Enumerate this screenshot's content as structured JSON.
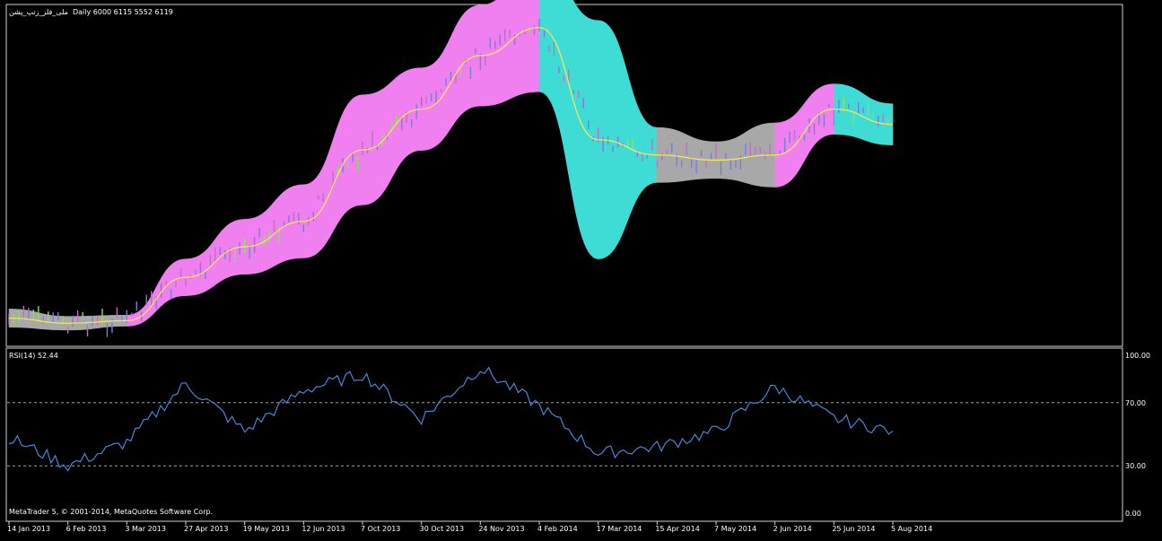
{
  "price_panel": {
    "header_symbol": "ملی_فلز_زتپ_پشن",
    "header_info": "Daily  6000 6115 5552 6119"
  },
  "rsi_panel": {
    "label": "RSI(14) 52.44",
    "levels": [
      "100.00",
      "70.00",
      "30.00",
      "0.00"
    ]
  },
  "copyright": "MetaTrader 5, © 2001-2014, MetaQuotes Software Corp.",
  "x_axis_labels": [
    "14 Jan 2013",
    "6 Feb 2013",
    "3 Mar 2013",
    "27 Apr 2013",
    "19 May 2013",
    "12 Jun 2013",
    "7 Oct 2013",
    "30 Oct 2013",
    "24 Nov 2013",
    "4 Feb 2014",
    "17 Mar 2014",
    "15 Apr 2014",
    "7 May 2014",
    "2 Jun 2014",
    "25 Jun 2014",
    "5 Aug 2014"
  ],
  "colors": {
    "background": "#000000",
    "band_bull": "#f07fef",
    "band_bear": "#3fdcd6",
    "band_neutral": "#a8a8a8",
    "ma_line": "#f4e65a",
    "rsi_line": "#4a86d6",
    "level_line": "#bdbdbd",
    "frame": "#cfcfcf"
  },
  "chart_data": [
    {
      "type": "area",
      "description_series": "Price envelope bands with moving average",
      "x": [
        "14 Jan 2013",
        "6 Feb 2013",
        "3 Mar 2013",
        "27 Apr 2013",
        "19 May 2013",
        "12 Jun 2013",
        "7 Oct 2013",
        "30 Oct 2013",
        "24 Nov 2013",
        "4 Feb 2014",
        "17 Mar 2014",
        "15 Apr 2014",
        "7 May 2014",
        "2 Jun 2014",
        "25 Jun 2014",
        "5 Aug 2014"
      ],
      "series": [
        {
          "values": [
            1500,
            1400,
            1450,
            2300,
            2900,
            3400,
            4800,
            5600,
            6650,
            7200,
            5000,
            4700,
            4600,
            4700,
            5600,
            5300
          ]
        }
      ]
    },
    {
      "type": "line",
      "title": "RSI(14) 52.44",
      "x": [
        "14 Jan 2013",
        "6 Feb 2013",
        "3 Mar 2013",
        "27 Apr 2013",
        "19 May 2013",
        "12 Jun 2013",
        "7 Oct 2013",
        "30 Oct 2013",
        "24 Nov 2013",
        "4 Feb 2014",
        "17 Mar 2014",
        "15 Apr 2014",
        "7 May 2014",
        "2 Jun 2014",
        "25 Jun 2014",
        "5 Aug 2014"
      ],
      "series": [
        {
          "values": [
            48,
            30,
            45,
            82,
            52,
            78,
            88,
            60,
            92,
            68,
            38,
            42,
            52,
            80,
            60,
            52
          ]
        }
      ],
      "ylim": [
        0,
        100
      ],
      "levels": [
        70,
        30
      ]
    }
  ]
}
